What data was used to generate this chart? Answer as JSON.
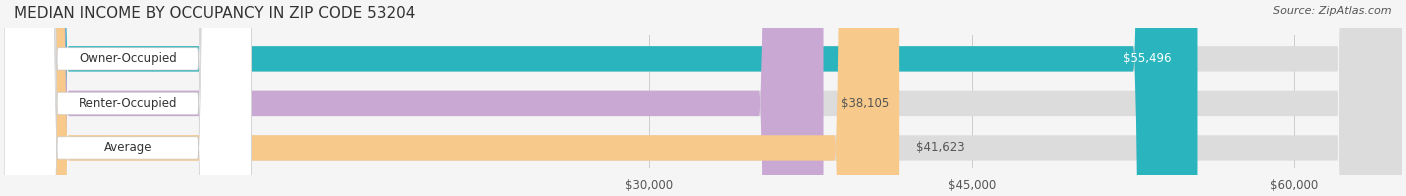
{
  "title": "MEDIAN INCOME BY OCCUPANCY IN ZIP CODE 53204",
  "source": "Source: ZipAtlas.com",
  "categories": [
    "Owner-Occupied",
    "Renter-Occupied",
    "Average"
  ],
  "values": [
    55496,
    38105,
    41623
  ],
  "bar_colors": [
    "#2ab5be",
    "#c9a8d4",
    "#f7c98a"
  ],
  "bar_bg_color": "#e8e8e8",
  "value_labels": [
    "$55,496",
    "$38,105",
    "$41,623"
  ],
  "xmin": 0,
  "xmax": 65000,
  "xticks": [
    30000,
    45000,
    60000
  ],
  "xtick_labels": [
    "$30,000",
    "$45,000",
    "$60,000"
  ],
  "background_color": "#f5f5f5",
  "bar_bg": "#dcdcdc",
  "title_fontsize": 11,
  "label_fontsize": 8.5,
  "value_fontsize": 8.5,
  "source_fontsize": 8
}
